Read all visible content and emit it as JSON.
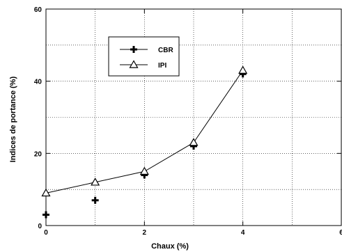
{
  "chart_data": {
    "type": "scatter",
    "xlabel": "Chaux (%)",
    "ylabel": "Indices de portance (%)",
    "xlim": [
      0,
      6
    ],
    "ylim": [
      0,
      60
    ],
    "x_ticks": [
      0,
      2,
      4,
      6
    ],
    "y_ticks": [
      0,
      20,
      40,
      60
    ],
    "x_tick_labels": [
      "0",
      "2",
      "4",
      "6"
    ],
    "y_tick_labels": [
      "0",
      "20",
      "40",
      "60"
    ],
    "grid": true,
    "legend_position": "upper-left inside",
    "series": [
      {
        "name": "CBR",
        "marker": "plus",
        "line": false,
        "x": [
          0,
          1,
          2,
          3,
          4
        ],
        "y": [
          3,
          7,
          14,
          22,
          42
        ]
      },
      {
        "name": "IPI",
        "marker": "triangle",
        "line": true,
        "x": [
          0,
          1,
          2,
          3,
          4
        ],
        "y": [
          9,
          12,
          15,
          23,
          43
        ]
      }
    ]
  }
}
